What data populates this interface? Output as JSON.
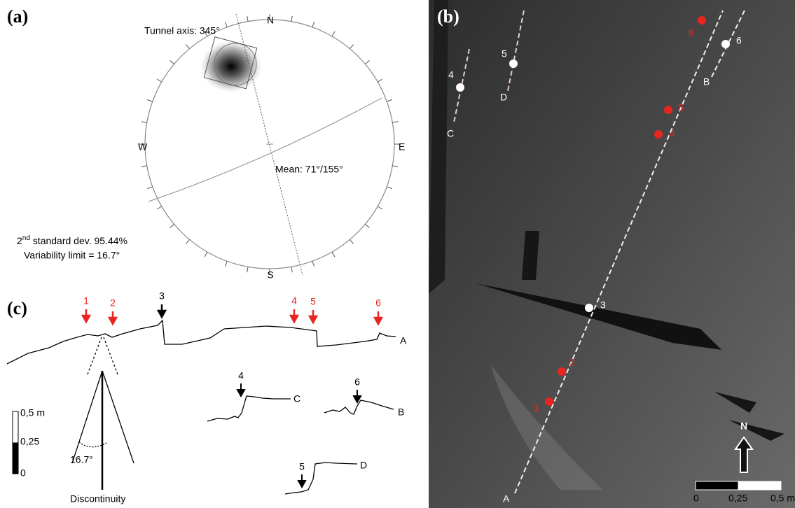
{
  "panel_a": {
    "label": "(a)",
    "axis_label": "Tunnel axis: 345°",
    "dir_n": "N",
    "dir_e": "E",
    "dir_s": "S",
    "dir_w": "W",
    "mean_label": "Mean: 71°/155°",
    "std_number": "2",
    "std_sup": "nd",
    "std_text": " standard dev. 95.44%",
    "variability": "Variability limit = 16.7°"
  },
  "panel_b": {
    "label": "(b)",
    "red_points": [
      "1",
      "2",
      "4",
      "5",
      "6"
    ],
    "white_points": [
      "3",
      "4",
      "5",
      "6"
    ],
    "lines": [
      "A",
      "B",
      "C",
      "D"
    ],
    "north": "N",
    "scale": [
      "0",
      "0,25",
      "0,5 m"
    ]
  },
  "panel_c": {
    "label": "(c)",
    "profile_a_markers": [
      "1",
      "2",
      "3",
      "4",
      "5",
      "6"
    ],
    "profile_a_label": "A",
    "profile_c_marker": "4",
    "profile_c_label": "C",
    "profile_b_marker": "6",
    "profile_b_label": "B",
    "profile_d_marker": "5",
    "profile_d_label": "D",
    "scale": [
      "0,5 m",
      "0,25",
      "0"
    ],
    "angle": "16.7°",
    "discontinuity": "Discontinuity"
  }
}
